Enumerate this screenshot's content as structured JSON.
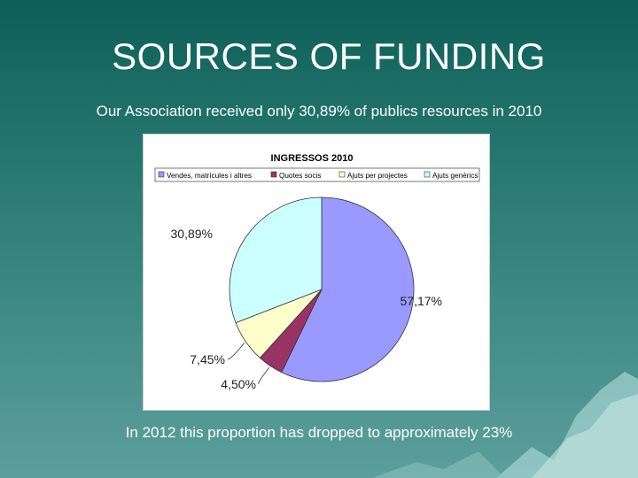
{
  "slide": {
    "title": "SOURCES OF FUNDING",
    "subtitle": "Our Association received only 30,89% of publics resources in 2010",
    "footnote": "In 2012 this proportion has dropped to approximately 23%"
  },
  "chart_data": {
    "type": "pie",
    "title": "INGRESSOS 2010",
    "legend_position": "top",
    "slices": [
      {
        "name": "Vendes, matrícules i altres",
        "value": 57.17,
        "label": "57,17%",
        "color": "#9999ff"
      },
      {
        "name": "Quotes socis",
        "value": 4.5,
        "label": "4,50%",
        "color": "#993366"
      },
      {
        "name": "Ajuts per projectes",
        "value": 7.45,
        "label": "7,45%",
        "color": "#ffffcc"
      },
      {
        "name": "Ajuts genèrics",
        "value": 30.89,
        "label": "30,89%",
        "color": "#ccffff"
      }
    ]
  }
}
